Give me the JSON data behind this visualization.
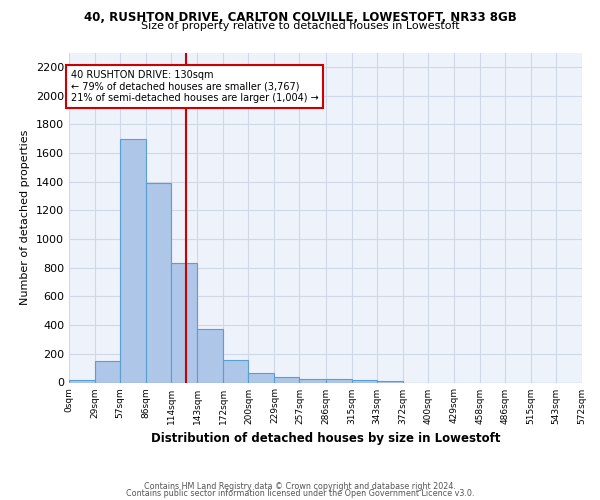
{
  "title1": "40, RUSHTON DRIVE, CARLTON COLVILLE, LOWESTOFT, NR33 8GB",
  "title2": "Size of property relative to detached houses in Lowestoft",
  "xlabel": "Distribution of detached houses by size in Lowestoft",
  "ylabel": "Number of detached properties",
  "footnote1": "Contains HM Land Registry data © Crown copyright and database right 2024.",
  "footnote2": "Contains public sector information licensed under the Open Government Licence v3.0.",
  "bar_edges": [
    0,
    29,
    57,
    86,
    114,
    143,
    172,
    200,
    229,
    257,
    286,
    315,
    343,
    372,
    400,
    429,
    458,
    486,
    515,
    543,
    572
  ],
  "bar_heights": [
    15,
    150,
    1700,
    1390,
    835,
    375,
    160,
    65,
    35,
    25,
    25,
    20,
    10,
    0,
    0,
    0,
    0,
    0,
    0,
    0
  ],
  "bar_color": "#aec6e8",
  "bar_edge_color": "#5a9fd4",
  "vline_x": 130,
  "vline_color": "#cc0000",
  "annotation_text": "40 RUSHTON DRIVE: 130sqm\n← 79% of detached houses are smaller (3,767)\n21% of semi-detached houses are larger (1,004) →",
  "annotation_box_color": "#cc0000",
  "ylim": [
    0,
    2300
  ],
  "yticks": [
    0,
    200,
    400,
    600,
    800,
    1000,
    1200,
    1400,
    1600,
    1800,
    2000,
    2200
  ],
  "xtick_labels": [
    "0sqm",
    "29sqm",
    "57sqm",
    "86sqm",
    "114sqm",
    "143sqm",
    "172sqm",
    "200sqm",
    "229sqm",
    "257sqm",
    "286sqm",
    "315sqm",
    "343sqm",
    "372sqm",
    "400sqm",
    "429sqm",
    "458sqm",
    "486sqm",
    "515sqm",
    "543sqm",
    "572sqm"
  ],
  "grid_color": "#d0d8e8",
  "bg_color": "#eef2fa"
}
